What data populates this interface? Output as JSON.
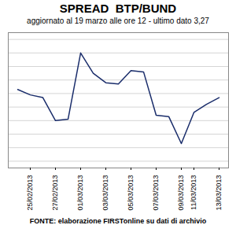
{
  "chart_data": {
    "type": "line",
    "title": "SPREAD  BTP/BUND",
    "subtitle": "aggiornato al 19 marzo alle ore 12 - ultimo dato 3,27",
    "caption": "FONTE: elaborazione FIRSTonline su dati di archivio",
    "categories": [
      null,
      "25/02/2013",
      null,
      "27/02/2013",
      null,
      "01/03/2013",
      null,
      "03/03/2013",
      null,
      "05/03/2013",
      null,
      "07/03/2013",
      null,
      "09/03/2013",
      "11/03/2013",
      null,
      "13/03/2013"
    ],
    "values": [
      3.33,
      3.29,
      3.27,
      3.1,
      3.11,
      3.6,
      3.45,
      3.38,
      3.37,
      3.47,
      3.46,
      3.14,
      3.13,
      2.93,
      3.16,
      3.22,
      3.27
    ],
    "color": "#1a2d6b",
    "ylim": [
      2.75,
      3.75
    ],
    "yticks": [
      2.8,
      2.9,
      3.0,
      3.1,
      3.2,
      3.3,
      3.4,
      3.5,
      3.6,
      3.7
    ],
    "grid": true,
    "tick_labels": "x"
  }
}
